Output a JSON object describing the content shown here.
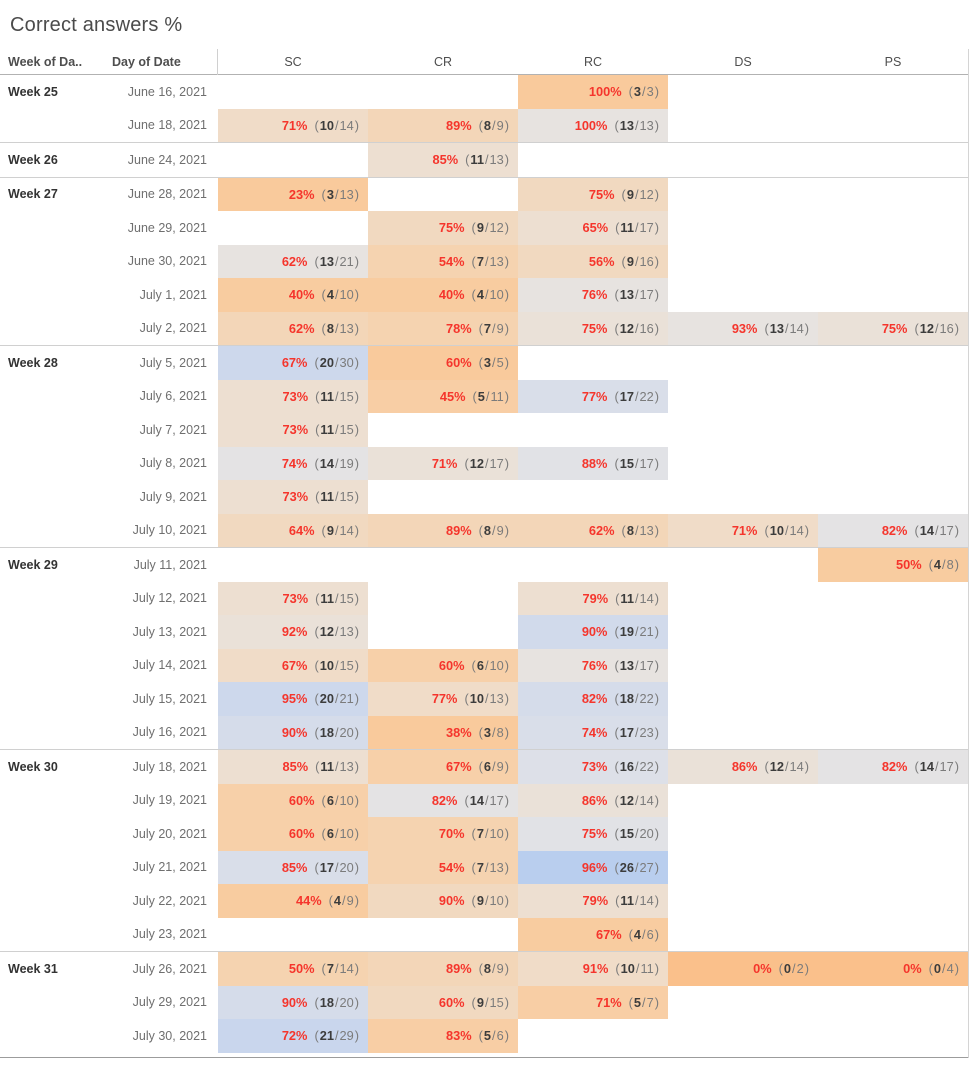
{
  "title": "Correct answers %",
  "header": {
    "week_col": "Week of Da..",
    "day_col": "Day of Date",
    "value_cols": [
      "SC",
      "CR",
      "RC",
      "DS",
      "PS"
    ]
  },
  "colors": {
    "percent_red": "#f5352c",
    "numerator_text": "#3c3c3c",
    "denominator_text": "#7b7b7b",
    "palette_by_correct_count": {
      "0": "#FAC08B",
      "3": "#F9CA9C",
      "4": "#F8CCA0",
      "5": "#F8CEA5",
      "6": "#F7D0A9",
      "7": "#F5D3B0",
      "8": "#F3D6B8",
      "9": "#F1D9C0",
      "10": "#F0DCC8",
      "11": "#EDDFD1",
      "12": "#EAE1D8",
      "13": "#E7E3E0",
      "14": "#E4E3E4",
      "15": "#E1E2E6",
      "16": "#DDE0E8",
      "17": "#D9DEE9",
      "18": "#D5DCEA",
      "19": "#D1DAEB",
      "20": "#CDD8EC",
      "21": "#C9D6ED",
      "26": "#B9CEEE"
    }
  },
  "chart_data": {
    "type": "heatmap",
    "title": "Correct answers %",
    "columns": [
      "SC",
      "CR",
      "RC",
      "DS",
      "PS"
    ],
    "note": "cells are pct (num/den); color encodes number correct (orange low, gray mid, blue high)"
  },
  "weeks": [
    {
      "label": "Week 25",
      "rows": [
        {
          "date": "June 16, 2021",
          "cells": [
            null,
            null,
            {
              "pct": "100%",
              "num": "3",
              "den": "3"
            },
            null,
            null
          ]
        },
        {
          "date": "June 18, 2021",
          "cells": [
            {
              "pct": "71%",
              "num": "10",
              "den": "14"
            },
            {
              "pct": "89%",
              "num": "8",
              "den": "9"
            },
            {
              "pct": "100%",
              "num": "13",
              "den": "13"
            },
            null,
            null
          ]
        }
      ]
    },
    {
      "label": "Week 26",
      "rows": [
        {
          "date": "June 24, 2021",
          "cells": [
            null,
            {
              "pct": "85%",
              "num": "11",
              "den": "13"
            },
            null,
            null,
            null
          ]
        }
      ]
    },
    {
      "label": "Week 27",
      "rows": [
        {
          "date": "June 28, 2021",
          "cells": [
            {
              "pct": "23%",
              "num": "3",
              "den": "13"
            },
            null,
            {
              "pct": "75%",
              "num": "9",
              "den": "12"
            },
            null,
            null
          ]
        },
        {
          "date": "June 29, 2021",
          "cells": [
            null,
            {
              "pct": "75%",
              "num": "9",
              "den": "12"
            },
            {
              "pct": "65%",
              "num": "11",
              "den": "17"
            },
            null,
            null
          ]
        },
        {
          "date": "June 30, 2021",
          "cells": [
            {
              "pct": "62%",
              "num": "13",
              "den": "21"
            },
            {
              "pct": "54%",
              "num": "7",
              "den": "13"
            },
            {
              "pct": "56%",
              "num": "9",
              "den": "16"
            },
            null,
            null
          ]
        },
        {
          "date": "July 1, 2021",
          "cells": [
            {
              "pct": "40%",
              "num": "4",
              "den": "10"
            },
            {
              "pct": "40%",
              "num": "4",
              "den": "10"
            },
            {
              "pct": "76%",
              "num": "13",
              "den": "17"
            },
            null,
            null
          ]
        },
        {
          "date": "July 2, 2021",
          "cells": [
            {
              "pct": "62%",
              "num": "8",
              "den": "13"
            },
            {
              "pct": "78%",
              "num": "7",
              "den": "9"
            },
            {
              "pct": "75%",
              "num": "12",
              "den": "16"
            },
            {
              "pct": "93%",
              "num": "13",
              "den": "14"
            },
            {
              "pct": "75%",
              "num": "12",
              "den": "16"
            }
          ]
        }
      ]
    },
    {
      "label": "Week 28",
      "rows": [
        {
          "date": "July 5, 2021",
          "cells": [
            {
              "pct": "67%",
              "num": "20",
              "den": "30"
            },
            {
              "pct": "60%",
              "num": "3",
              "den": "5"
            },
            null,
            null,
            null
          ]
        },
        {
          "date": "July 6, 2021",
          "cells": [
            {
              "pct": "73%",
              "num": "11",
              "den": "15"
            },
            {
              "pct": "45%",
              "num": "5",
              "den": "11"
            },
            {
              "pct": "77%",
              "num": "17",
              "den": "22"
            },
            null,
            null
          ]
        },
        {
          "date": "July 7, 2021",
          "cells": [
            {
              "pct": "73%",
              "num": "11",
              "den": "15"
            },
            null,
            null,
            null,
            null
          ]
        },
        {
          "date": "July 8, 2021",
          "cells": [
            {
              "pct": "74%",
              "num": "14",
              "den": "19"
            },
            {
              "pct": "71%",
              "num": "12",
              "den": "17"
            },
            {
              "pct": "88%",
              "num": "15",
              "den": "17"
            },
            null,
            null
          ]
        },
        {
          "date": "July 9, 2021",
          "cells": [
            {
              "pct": "73%",
              "num": "11",
              "den": "15"
            },
            null,
            null,
            null,
            null
          ]
        },
        {
          "date": "July 10, 2021",
          "cells": [
            {
              "pct": "64%",
              "num": "9",
              "den": "14"
            },
            {
              "pct": "89%",
              "num": "8",
              "den": "9"
            },
            {
              "pct": "62%",
              "num": "8",
              "den": "13"
            },
            {
              "pct": "71%",
              "num": "10",
              "den": "14"
            },
            {
              "pct": "82%",
              "num": "14",
              "den": "17"
            }
          ]
        }
      ]
    },
    {
      "label": "Week 29",
      "rows": [
        {
          "date": "July 11, 2021",
          "cells": [
            null,
            null,
            null,
            null,
            {
              "pct": "50%",
              "num": "4",
              "den": "8"
            }
          ]
        },
        {
          "date": "July 12, 2021",
          "cells": [
            {
              "pct": "73%",
              "num": "11",
              "den": "15"
            },
            null,
            {
              "pct": "79%",
              "num": "11",
              "den": "14"
            },
            null,
            null
          ]
        },
        {
          "date": "July 13, 2021",
          "cells": [
            {
              "pct": "92%",
              "num": "12",
              "den": "13"
            },
            null,
            {
              "pct": "90%",
              "num": "19",
              "den": "21"
            },
            null,
            null
          ]
        },
        {
          "date": "July 14, 2021",
          "cells": [
            {
              "pct": "67%",
              "num": "10",
              "den": "15"
            },
            {
              "pct": "60%",
              "num": "6",
              "den": "10"
            },
            {
              "pct": "76%",
              "num": "13",
              "den": "17"
            },
            null,
            null
          ]
        },
        {
          "date": "July 15, 2021",
          "cells": [
            {
              "pct": "95%",
              "num": "20",
              "den": "21"
            },
            {
              "pct": "77%",
              "num": "10",
              "den": "13"
            },
            {
              "pct": "82%",
              "num": "18",
              "den": "22"
            },
            null,
            null
          ]
        },
        {
          "date": "July 16, 2021",
          "cells": [
            {
              "pct": "90%",
              "num": "18",
              "den": "20"
            },
            {
              "pct": "38%",
              "num": "3",
              "den": "8"
            },
            {
              "pct": "74%",
              "num": "17",
              "den": "23"
            },
            null,
            null
          ]
        }
      ]
    },
    {
      "label": "Week 30",
      "rows": [
        {
          "date": "July 18, 2021",
          "cells": [
            {
              "pct": "85%",
              "num": "11",
              "den": "13"
            },
            {
              "pct": "67%",
              "num": "6",
              "den": "9"
            },
            {
              "pct": "73%",
              "num": "16",
              "den": "22"
            },
            {
              "pct": "86%",
              "num": "12",
              "den": "14"
            },
            {
              "pct": "82%",
              "num": "14",
              "den": "17"
            }
          ]
        },
        {
          "date": "July 19, 2021",
          "cells": [
            {
              "pct": "60%",
              "num": "6",
              "den": "10"
            },
            {
              "pct": "82%",
              "num": "14",
              "den": "17"
            },
            {
              "pct": "86%",
              "num": "12",
              "den": "14"
            },
            null,
            null
          ]
        },
        {
          "date": "July 20, 2021",
          "cells": [
            {
              "pct": "60%",
              "num": "6",
              "den": "10"
            },
            {
              "pct": "70%",
              "num": "7",
              "den": "10"
            },
            {
              "pct": "75%",
              "num": "15",
              "den": "20"
            },
            null,
            null
          ]
        },
        {
          "date": "July 21, 2021",
          "cells": [
            {
              "pct": "85%",
              "num": "17",
              "den": "20"
            },
            {
              "pct": "54%",
              "num": "7",
              "den": "13"
            },
            {
              "pct": "96%",
              "num": "26",
              "den": "27"
            },
            null,
            null
          ]
        },
        {
          "date": "July 22, 2021",
          "cells": [
            {
              "pct": "44%",
              "num": "4",
              "den": "9"
            },
            {
              "pct": "90%",
              "num": "9",
              "den": "10"
            },
            {
              "pct": "79%",
              "num": "11",
              "den": "14"
            },
            null,
            null
          ]
        },
        {
          "date": "July 23, 2021",
          "cells": [
            null,
            null,
            {
              "pct": "67%",
              "num": "4",
              "den": "6"
            },
            null,
            null
          ]
        }
      ]
    },
    {
      "label": "Week 31",
      "rows": [
        {
          "date": "July 26, 2021",
          "cells": [
            {
              "pct": "50%",
              "num": "7",
              "den": "14"
            },
            {
              "pct": "89%",
              "num": "8",
              "den": "9"
            },
            {
              "pct": "91%",
              "num": "10",
              "den": "11"
            },
            {
              "pct": "0%",
              "num": "0",
              "den": "2"
            },
            {
              "pct": "0%",
              "num": "0",
              "den": "4"
            }
          ]
        },
        {
          "date": "July 29, 2021",
          "cells": [
            {
              "pct": "90%",
              "num": "18",
              "den": "20"
            },
            {
              "pct": "60%",
              "num": "9",
              "den": "15"
            },
            {
              "pct": "71%",
              "num": "5",
              "den": "7"
            },
            null,
            null
          ]
        },
        {
          "date": "July 30, 2021",
          "cells": [
            {
              "pct": "72%",
              "num": "21",
              "den": "29"
            },
            {
              "pct": "83%",
              "num": "5",
              "den": "6"
            },
            null,
            null,
            null
          ]
        }
      ]
    }
  ]
}
